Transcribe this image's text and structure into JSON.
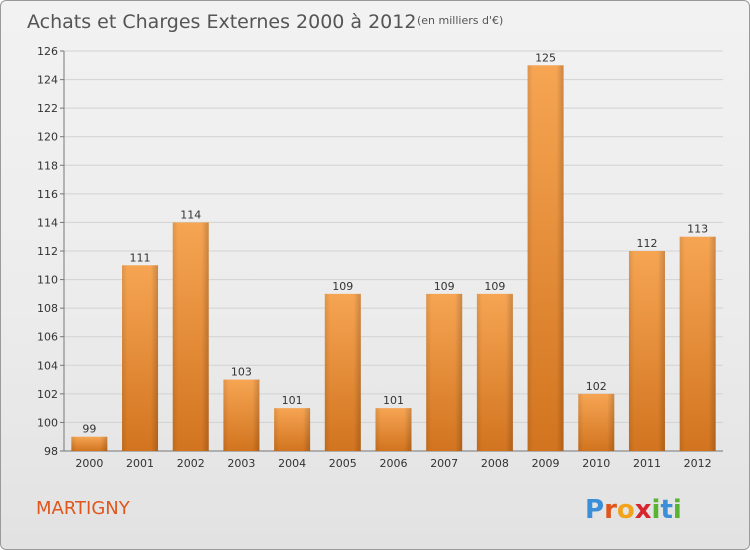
{
  "title": "Achats et Charges Externes 2000 à 2012",
  "unit": "(en milliers d'€)",
  "place": "MARTIGNY",
  "logo": {
    "text": "Proxiti",
    "letter_colors": [
      "#3a8fd8",
      "#e0561c",
      "#f2a31b",
      "#d8262e",
      "#59b431",
      "#3a8fd8",
      "#59b431"
    ]
  },
  "colors": {
    "bar_light": "#f6a553",
    "bar_dark": "#d2741f",
    "title": "#555555",
    "place": "#e0561c"
  },
  "chart_data": {
    "type": "bar",
    "title": "Achats et Charges Externes 2000 à 2012",
    "categories": [
      "2000",
      "2001",
      "2002",
      "2003",
      "2004",
      "2005",
      "2006",
      "2007",
      "2008",
      "2009",
      "2010",
      "2011",
      "2012"
    ],
    "values": [
      99,
      111,
      114,
      103,
      101,
      109,
      101,
      109,
      109,
      125,
      102,
      112,
      113
    ],
    "ylim": [
      98,
      126
    ],
    "yticks": [
      98,
      100,
      102,
      104,
      106,
      108,
      110,
      112,
      114,
      116,
      118,
      120,
      122,
      124,
      126
    ],
    "grid": true,
    "legend": "none"
  }
}
